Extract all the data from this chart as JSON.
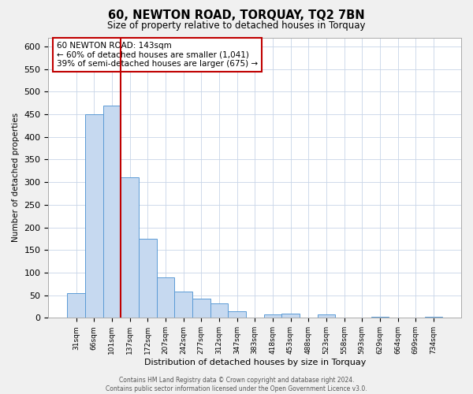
{
  "title": "60, NEWTON ROAD, TORQUAY, TQ2 7BN",
  "subtitle": "Size of property relative to detached houses in Torquay",
  "xlabel": "Distribution of detached houses by size in Torquay",
  "ylabel": "Number of detached properties",
  "bar_labels": [
    "31sqm",
    "66sqm",
    "101sqm",
    "137sqm",
    "172sqm",
    "207sqm",
    "242sqm",
    "277sqm",
    "312sqm",
    "347sqm",
    "383sqm",
    "418sqm",
    "453sqm",
    "488sqm",
    "523sqm",
    "558sqm",
    "593sqm",
    "629sqm",
    "664sqm",
    "699sqm",
    "734sqm"
  ],
  "bar_values": [
    55,
    450,
    470,
    310,
    175,
    90,
    58,
    42,
    32,
    15,
    0,
    7,
    9,
    0,
    8,
    0,
    0,
    3,
    0,
    0,
    2
  ],
  "bar_color": "#c6d9f0",
  "bar_edge_color": "#5b9bd5",
  "ylim": [
    0,
    620
  ],
  "yticks": [
    0,
    50,
    100,
    150,
    200,
    250,
    300,
    350,
    400,
    450,
    500,
    550,
    600
  ],
  "vline_index": 3,
  "vline_color": "#c00000",
  "annotation_box_text": "60 NEWTON ROAD: 143sqm\n← 60% of detached houses are smaller (1,041)\n39% of semi-detached houses are larger (675) →",
  "footer_text": "Contains HM Land Registry data © Crown copyright and database right 2024.\nContains public sector information licensed under the Open Government Licence v3.0.",
  "background_color": "#f0f0f0",
  "plot_bg_color": "#ffffff",
  "grid_color": "#c8d4e8"
}
